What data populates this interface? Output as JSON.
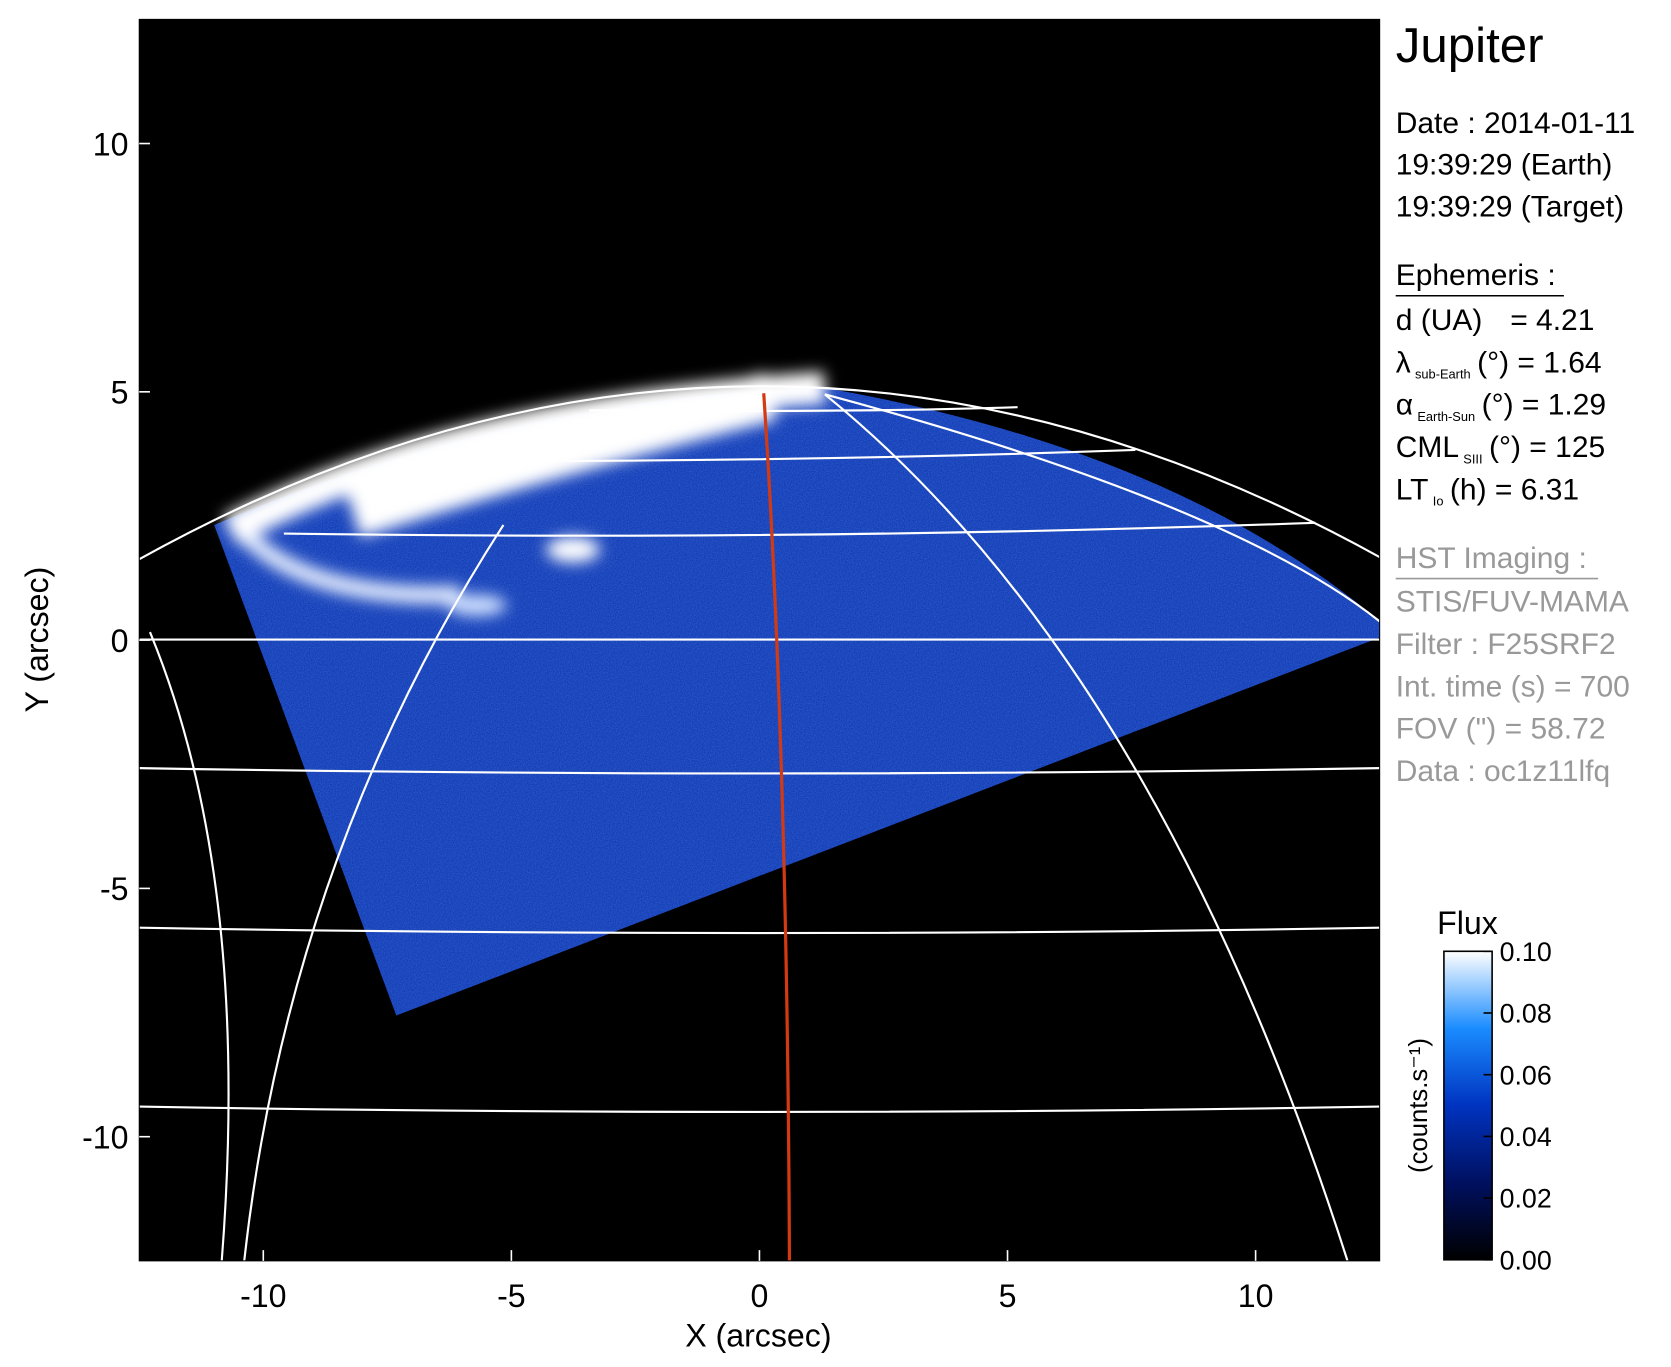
{
  "chart_data": {
    "type": "image",
    "title": "Jupiter",
    "xlabel": "X (arcsec)",
    "ylabel": "Y (arcsec)",
    "xlim": [
      -12.5,
      12.5
    ],
    "ylim": [
      -12.5,
      12.5
    ],
    "xticks": [
      -10,
      -5,
      0,
      5,
      10
    ],
    "yticks": [
      -10,
      -5,
      0,
      5,
      10
    ],
    "colorbar": {
      "title": "Flux",
      "label": "(counts.s⁻¹)",
      "lim": [
        0,
        0.1
      ],
      "ticks": [
        {
          "value": 0,
          "label": "0.00"
        },
        0.02,
        0.04,
        0.06,
        0.08,
        {
          "value": 0.1,
          "label": "0.10"
        }
      ],
      "colors": [
        "#000000",
        "#001060",
        "#0033c0",
        "#1a8cff",
        "#ffffff"
      ]
    },
    "info": {
      "date": "Date : 2014-01-11",
      "times": [
        "19:39:29 (Earth)",
        "19:39:29 (Target)"
      ]
    },
    "ephemeris": {
      "heading": "Ephemeris :",
      "rows": [
        {
          "name": "d (UA)",
          "rest": "= 4.21"
        },
        {
          "name": "λ",
          "sub": "sub-Earth",
          "rest": "(°) = 1.64"
        },
        {
          "name": "α",
          "sub": "Earth-Sun",
          "rest": "(°) = 1.29"
        },
        {
          "name": "CML",
          "sub": "SIII",
          "rest": "(°) = 125"
        },
        {
          "name": "LT",
          "sub": "Io",
          "rest": "(h) = 6.31"
        }
      ]
    },
    "imaging": {
      "heading": "HST Imaging :",
      "rows": [
        "STIS/FUV-MAMA",
        "Filter : F25SRF2",
        "Int. time (s) = 700",
        "FOV (\") = 58.72",
        "Data : oc1z11lfq"
      ]
    }
  }
}
